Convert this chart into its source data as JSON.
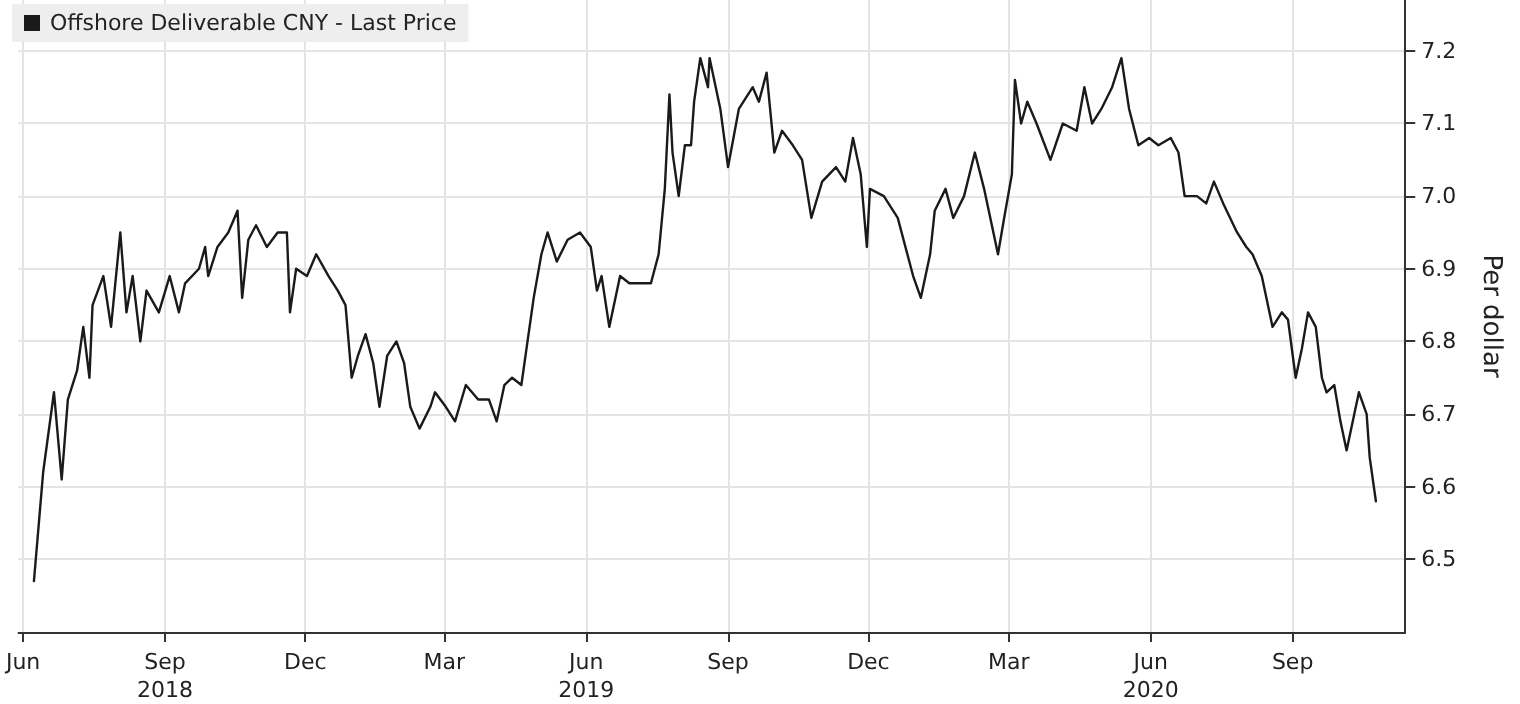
{
  "chart_data": {
    "type": "line",
    "series": [
      {
        "name": "Offshore Deliverable CNY - Last Price",
        "color": "#1a1a1a",
        "x": [
          "2018-06-22",
          "2018-06-28",
          "2018-07-05",
          "2018-07-10",
          "2018-07-14",
          "2018-07-20",
          "2018-07-24",
          "2018-07-28",
          "2018-07-30",
          "2018-08-06",
          "2018-08-11",
          "2018-08-17",
          "2018-08-21",
          "2018-08-25",
          "2018-08-30",
          "2018-09-03",
          "2018-09-11",
          "2018-09-18",
          "2018-09-24",
          "2018-09-28",
          "2018-10-07",
          "2018-10-11",
          "2018-10-13",
          "2018-10-19",
          "2018-10-26",
          "2018-11-01",
          "2018-11-04",
          "2018-11-08",
          "2018-11-13",
          "2018-11-20",
          "2018-11-27",
          "2018-12-03",
          "2018-12-05",
          "2018-12-09",
          "2018-12-16",
          "2018-12-22",
          "2018-12-30",
          "2019-01-05",
          "2019-01-10",
          "2019-01-14",
          "2019-01-18",
          "2019-01-23",
          "2019-01-28",
          "2019-02-01",
          "2019-02-06",
          "2019-02-12",
          "2019-02-17",
          "2019-02-21",
          "2019-02-27",
          "2019-03-06",
          "2019-03-09",
          "2019-03-16",
          "2019-03-22",
          "2019-03-29",
          "2019-04-06",
          "2019-04-13",
          "2019-04-18",
          "2019-04-23",
          "2019-04-28",
          "2019-05-04",
          "2019-05-08",
          "2019-05-12",
          "2019-05-17",
          "2019-05-21",
          "2019-05-27",
          "2019-06-03",
          "2019-06-11",
          "2019-06-18",
          "2019-06-22",
          "2019-06-25",
          "2019-06-30",
          "2019-07-07",
          "2019-07-13",
          "2019-07-27",
          "2019-08-01",
          "2019-08-05",
          "2019-08-08",
          "2019-08-10",
          "2019-08-14",
          "2019-08-18",
          "2019-08-22",
          "2019-08-24",
          "2019-08-28",
          "2019-09-02",
          "2019-09-03",
          "2019-09-10",
          "2019-09-15",
          "2019-09-22",
          "2019-10-01",
          "2019-10-05",
          "2019-10-10",
          "2019-10-15",
          "2019-10-20",
          "2019-10-27",
          "2019-11-02",
          "2019-11-08",
          "2019-11-15",
          "2019-11-24",
          "2019-11-30",
          "2019-12-05",
          "2019-12-10",
          "2019-12-14",
          "2019-12-16",
          "2019-12-25",
          "2020-01-03",
          "2020-01-13",
          "2020-01-18",
          "2020-01-24",
          "2020-01-27",
          "2020-02-03",
          "2020-02-08",
          "2020-02-15",
          "2020-02-22",
          "2020-02-28",
          "2020-03-08",
          "2020-03-12",
          "2020-03-17",
          "2020-03-19",
          "2020-03-23",
          "2020-03-27",
          "2020-04-02",
          "2020-04-11",
          "2020-04-19",
          "2020-04-28",
          "2020-05-03",
          "2020-05-08",
          "2020-05-14",
          "2020-05-21",
          "2020-05-27",
          "2020-06-01",
          "2020-06-07",
          "2020-06-14",
          "2020-06-20",
          "2020-06-28",
          "2020-07-03",
          "2020-07-07",
          "2020-07-15",
          "2020-07-21",
          "2020-07-26",
          "2020-08-01",
          "2020-08-10",
          "2020-08-16",
          "2020-08-20",
          "2020-08-26",
          "2020-09-02",
          "2020-09-08",
          "2020-09-12",
          "2020-09-17",
          "2020-09-21",
          "2020-09-25",
          "2020-09-30",
          "2020-10-04",
          "2020-10-07",
          "2020-10-12",
          "2020-10-16",
          "2020-10-20",
          "2020-10-25",
          "2020-10-28",
          "2020-11-02",
          "2020-11-04",
          "2020-11-08"
        ],
        "values": [
          6.47,
          6.62,
          6.73,
          6.61,
          6.72,
          6.76,
          6.82,
          6.75,
          6.85,
          6.89,
          6.82,
          6.95,
          6.84,
          6.89,
          6.8,
          6.87,
          6.84,
          6.89,
          6.84,
          6.88,
          6.9,
          6.93,
          6.89,
          6.93,
          6.95,
          6.98,
          6.86,
          6.94,
          6.96,
          6.93,
          6.95,
          6.95,
          6.84,
          6.9,
          6.89,
          6.92,
          6.89,
          6.87,
          6.85,
          6.75,
          6.78,
          6.81,
          6.77,
          6.71,
          6.78,
          6.8,
          6.77,
          6.71,
          6.68,
          6.71,
          6.73,
          6.71,
          6.69,
          6.74,
          6.72,
          6.72,
          6.69,
          6.74,
          6.75,
          6.74,
          6.8,
          6.86,
          6.92,
          6.95,
          6.91,
          6.94,
          6.95,
          6.93,
          6.87,
          6.89,
          6.82,
          6.89,
          6.88,
          6.88,
          6.92,
          7.01,
          7.14,
          7.06,
          7.0,
          7.07,
          7.07,
          7.13,
          7.19,
          7.15,
          7.19,
          7.12,
          7.04,
          7.12,
          7.15,
          7.13,
          7.17,
          7.06,
          7.09,
          7.07,
          7.05,
          6.97,
          7.02,
          7.04,
          7.02,
          7.08,
          7.03,
          6.93,
          7.01,
          7.0,
          6.97,
          6.89,
          6.86,
          6.92,
          6.98,
          7.01,
          6.97,
          7.0,
          7.06,
          7.01,
          6.92,
          6.97,
          7.03,
          7.16,
          7.1,
          7.13,
          7.1,
          7.05,
          7.1,
          7.09,
          7.15,
          7.1,
          7.12,
          7.15,
          7.19,
          7.12,
          7.07,
          7.08,
          7.07,
          7.08,
          7.06,
          7.0,
          7.0,
          6.99,
          7.02,
          6.99,
          6.95,
          6.93,
          6.92,
          6.89,
          6.82,
          6.84,
          6.83,
          6.75,
          6.79,
          6.84,
          6.82,
          6.75,
          6.73,
          6.74,
          6.69,
          6.65,
          6.7,
          6.73,
          6.7,
          6.64,
          6.58
        ]
      }
    ],
    "ylabel": "Per dollar",
    "xlim": [
      "2018-06-12",
      "2020-11-27"
    ],
    "xticks": [
      {
        "value": "2018-06-15",
        "label": "Jun"
      },
      {
        "value": "2018-09-15",
        "label": "Sep\n2018"
      },
      {
        "value": "2018-12-15",
        "label": "Dec"
      },
      {
        "value": "2019-03-15",
        "label": "Mar"
      },
      {
        "value": "2019-06-15",
        "label": "Jun\n2019"
      },
      {
        "value": "2019-09-15",
        "label": "Sep"
      },
      {
        "value": "2019-12-15",
        "label": "Dec"
      },
      {
        "value": "2020-03-15",
        "label": "Mar"
      },
      {
        "value": "2020-06-15",
        "label": "Jun\n2020"
      },
      {
        "value": "2020-09-15",
        "label": "Sep"
      }
    ],
    "ylim": [
      6.4,
      7.27
    ],
    "yticks": [
      6.5,
      6.6,
      6.7,
      6.8,
      6.9,
      {
        "value": 7,
        "label": "7.0"
      },
      7.1,
      7.2
    ],
    "grid": true,
    "legend": "top left",
    "marker": "none"
  }
}
